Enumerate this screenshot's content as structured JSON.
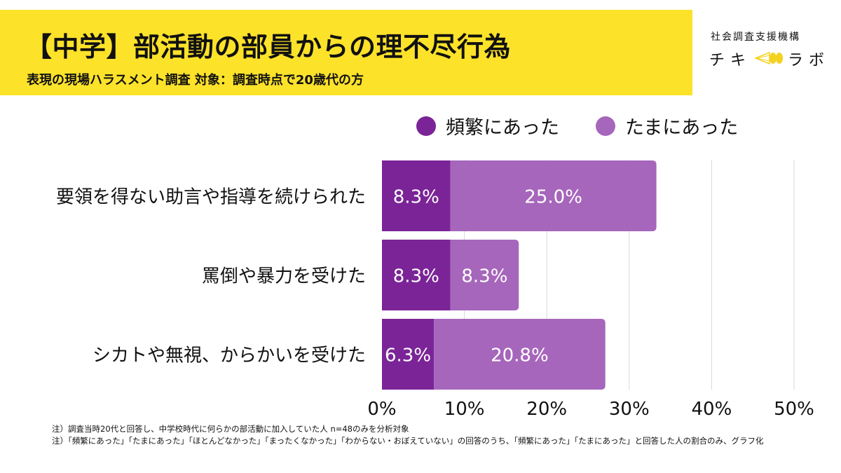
{
  "header": {
    "title": "【中学】部活動の部員からの理不尽行為",
    "subtitle": "表現の現場ハラスメント調査 対象：調査時点で20歳代の方"
  },
  "logo": {
    "org": "社会調査支援機構",
    "name_left": "チキ",
    "name_right": "ラボ",
    "icon": "chiki-lab-lamp-icon"
  },
  "colors": {
    "banner": "#fde22a",
    "frequent": "#7b2497",
    "occasional": "#a666bb",
    "grid": "#d9d9d9"
  },
  "chart_data": {
    "type": "bar",
    "orientation": "horizontal",
    "stacked": true,
    "title": "【中学】部活動の部員からの理不尽行為",
    "subtitle": "表現の現場ハラスメント調査 対象：調査時点で20歳代の方",
    "categories": [
      "要領を得ない助言や指導を続けられた",
      "罵倒や暴力を受けた",
      "シカトや無視、からかいを受けた"
    ],
    "series": [
      {
        "name": "頻繁にあった",
        "values": [
          8.3,
          8.3,
          6.3
        ],
        "labels": [
          "8.3%",
          "8.3%",
          "6.3%"
        ]
      },
      {
        "name": "たまにあった",
        "values": [
          25.0,
          8.3,
          20.8
        ],
        "labels": [
          "25.0%",
          "8.3%",
          "20.8%"
        ]
      }
    ],
    "xlim": [
      0,
      50
    ],
    "xticks": [
      0,
      10,
      20,
      30,
      40,
      50
    ],
    "xtick_labels": [
      "0%",
      "10%",
      "20%",
      "30%",
      "40%",
      "50%"
    ],
    "xlabel": "",
    "ylabel": "",
    "grid": "vertical",
    "legend": "top-right"
  },
  "notes": [
    "注）調査当時20代と回答し、中学校時代に何らかの部活動に加入していた人 n=48のみを分析対象",
    "注）「頻繁にあった」「たまにあった」「ほとんどなかった」「まったくなかった」「わからない・おぼえていない」の回答のうち、「頻繁にあった」「たまにあった」と回答した人の割合のみ、グラフ化"
  ]
}
